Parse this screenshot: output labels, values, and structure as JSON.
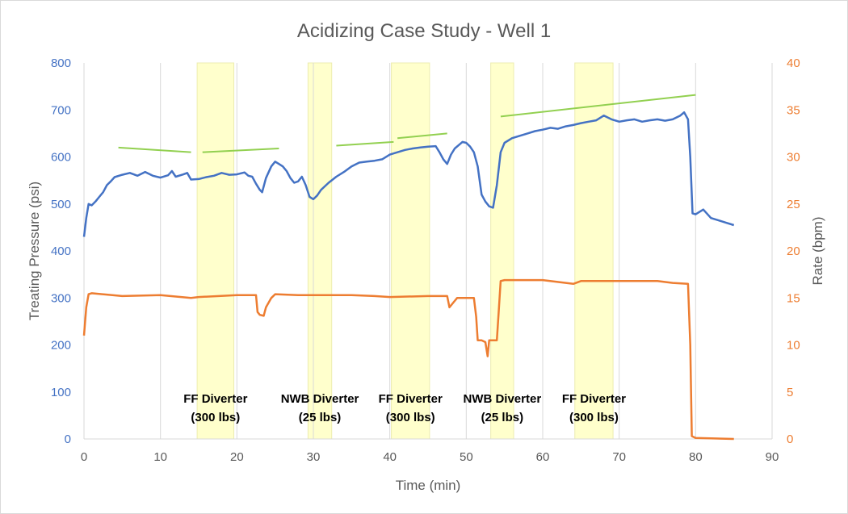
{
  "chart_data": {
    "type": "line",
    "title": "Acidizing Case Study - Well 1",
    "xlabel": "Time (min)",
    "ylabel_left": "Treating Pressure (psi)",
    "ylabel_right": "Rate (bpm)",
    "xlim": [
      0,
      90
    ],
    "ylim_left": [
      0,
      800
    ],
    "ylim_right": [
      0,
      40
    ],
    "x_ticks": [
      0,
      10,
      20,
      30,
      40,
      50,
      60,
      70,
      80,
      90
    ],
    "y_left_ticks": [
      0,
      100,
      200,
      300,
      400,
      500,
      600,
      700,
      800
    ],
    "y_right_ticks": [
      0,
      5,
      10,
      15,
      20,
      25,
      30,
      35,
      40
    ],
    "grid": "vertical",
    "colors": {
      "pressure": "#4472c4",
      "rate": "#ed7d31",
      "trend": "#92d050",
      "band": "#ffffcc",
      "grid": "#d9d9d9"
    },
    "series": [
      {
        "key": "pressure",
        "axis": "left",
        "points": [
          [
            0,
            430
          ],
          [
            0.3,
            470
          ],
          [
            0.6,
            500
          ],
          [
            1,
            497
          ],
          [
            1.5,
            505
          ],
          [
            2,
            515
          ],
          [
            2.5,
            525
          ],
          [
            3,
            540
          ],
          [
            3.5,
            548
          ],
          [
            4,
            557
          ],
          [
            5,
            562
          ],
          [
            6,
            566
          ],
          [
            7,
            560
          ],
          [
            8,
            568
          ],
          [
            9,
            560
          ],
          [
            10,
            556
          ],
          [
            11,
            561
          ],
          [
            11.5,
            570
          ],
          [
            12,
            558
          ],
          [
            13,
            563
          ],
          [
            13.5,
            566
          ],
          [
            14,
            552
          ],
          [
            15,
            553
          ],
          [
            16,
            557
          ],
          [
            17,
            560
          ],
          [
            18,
            566
          ],
          [
            19,
            562
          ],
          [
            20,
            563
          ],
          [
            21,
            567
          ],
          [
            21.5,
            560
          ],
          [
            22,
            558
          ],
          [
            22.5,
            543
          ],
          [
            23,
            530
          ],
          [
            23.3,
            525
          ],
          [
            23.8,
            555
          ],
          [
            24.5,
            580
          ],
          [
            25,
            590
          ],
          [
            25.5,
            585
          ],
          [
            26,
            580
          ],
          [
            26.5,
            570
          ],
          [
            27,
            555
          ],
          [
            27.5,
            545
          ],
          [
            28,
            548
          ],
          [
            28.5,
            558
          ],
          [
            29,
            540
          ],
          [
            29.5,
            515
          ],
          [
            30,
            510
          ],
          [
            30.5,
            518
          ],
          [
            31,
            530
          ],
          [
            32,
            545
          ],
          [
            33,
            558
          ],
          [
            34,
            568
          ],
          [
            35,
            580
          ],
          [
            36,
            588
          ],
          [
            37,
            590
          ],
          [
            38,
            592
          ],
          [
            39,
            595
          ],
          [
            40,
            605
          ],
          [
            41,
            610
          ],
          [
            42,
            615
          ],
          [
            43,
            618
          ],
          [
            44,
            620
          ],
          [
            45,
            622
          ],
          [
            46,
            623
          ],
          [
            46.5,
            610
          ],
          [
            47,
            595
          ],
          [
            47.5,
            585
          ],
          [
            48,
            605
          ],
          [
            48.5,
            618
          ],
          [
            49,
            625
          ],
          [
            49.5,
            632
          ],
          [
            50,
            630
          ],
          [
            50.5,
            622
          ],
          [
            51,
            610
          ],
          [
            51.5,
            580
          ],
          [
            52,
            520
          ],
          [
            52.5,
            505
          ],
          [
            53,
            495
          ],
          [
            53.5,
            492
          ],
          [
            54,
            540
          ],
          [
            54.5,
            610
          ],
          [
            55,
            630
          ],
          [
            56,
            640
          ],
          [
            57,
            645
          ],
          [
            58,
            650
          ],
          [
            59,
            655
          ],
          [
            60,
            658
          ],
          [
            61,
            662
          ],
          [
            62,
            660
          ],
          [
            63,
            665
          ],
          [
            64,
            668
          ],
          [
            65,
            672
          ],
          [
            66,
            675
          ],
          [
            67,
            678
          ],
          [
            68,
            688
          ],
          [
            69,
            680
          ],
          [
            70,
            675
          ],
          [
            71,
            678
          ],
          [
            72,
            680
          ],
          [
            73,
            675
          ],
          [
            74,
            678
          ],
          [
            75,
            680
          ],
          [
            76,
            677
          ],
          [
            77,
            680
          ],
          [
            78,
            688
          ],
          [
            78.5,
            695
          ],
          [
            79,
            680
          ],
          [
            79.3,
            600
          ],
          [
            79.6,
            480
          ],
          [
            80,
            478
          ],
          [
            81,
            488
          ],
          [
            82,
            470
          ],
          [
            83,
            465
          ],
          [
            84,
            460
          ],
          [
            85,
            455
          ]
        ]
      },
      {
        "key": "rate",
        "axis": "right",
        "points": [
          [
            0,
            11
          ],
          [
            0.3,
            14
          ],
          [
            0.6,
            15.4
          ],
          [
            1,
            15.5
          ],
          [
            5,
            15.2
          ],
          [
            10,
            15.3
          ],
          [
            14,
            15
          ],
          [
            15,
            15.1
          ],
          [
            20,
            15.3
          ],
          [
            22.5,
            15.3
          ],
          [
            22.7,
            13.5
          ],
          [
            23,
            13.2
          ],
          [
            23.5,
            13.1
          ],
          [
            23.8,
            14
          ],
          [
            24.5,
            15
          ],
          [
            25,
            15.4
          ],
          [
            28,
            15.3
          ],
          [
            30,
            15.3
          ],
          [
            35,
            15.3
          ],
          [
            38,
            15.2
          ],
          [
            40,
            15.1
          ],
          [
            45,
            15.2
          ],
          [
            47.5,
            15.2
          ],
          [
            47.8,
            14
          ],
          [
            48.3,
            14.5
          ],
          [
            48.8,
            15
          ],
          [
            51,
            15
          ],
          [
            51.3,
            13
          ],
          [
            51.5,
            10.5
          ],
          [
            52,
            10.5
          ],
          [
            52.5,
            10.3
          ],
          [
            52.8,
            8.8
          ],
          [
            53,
            10.5
          ],
          [
            54,
            10.5
          ],
          [
            54.2,
            13
          ],
          [
            54.5,
            16.8
          ],
          [
            55,
            16.9
          ],
          [
            60,
            16.9
          ],
          [
            64,
            16.5
          ],
          [
            65,
            16.8
          ],
          [
            70,
            16.8
          ],
          [
            75,
            16.8
          ],
          [
            77,
            16.6
          ],
          [
            79,
            16.5
          ],
          [
            79.3,
            10
          ],
          [
            79.5,
            0.3
          ],
          [
            80,
            0.1
          ],
          [
            85,
            0
          ]
        ]
      }
    ],
    "trend_lines": [
      [
        [
          4.5,
          31
        ],
        [
          14,
          30.5
        ]
      ],
      [
        [
          15.5,
          30.5
        ],
        [
          25.5,
          30.9
        ]
      ],
      [
        [
          33,
          31.2
        ],
        [
          40.5,
          31.6
        ]
      ],
      [
        [
          41,
          32
        ],
        [
          47.5,
          32.5
        ]
      ],
      [
        [
          54.5,
          34.3
        ],
        [
          80,
          36.6
        ]
      ]
    ],
    "diverter_stages": [
      {
        "start": 14.8,
        "end": 19.6,
        "label_line1": "FF Diverter",
        "label_line2": "(300 lbs)"
      },
      {
        "start": 29.3,
        "end": 32.4,
        "label_line1": "NWB Diverter",
        "label_line2": "(25 lbs)"
      },
      {
        "start": 40.2,
        "end": 45.2,
        "label_line1": "FF Diverter",
        "label_line2": "(300 lbs)"
      },
      {
        "start": 53.2,
        "end": 56.2,
        "label_line1": "NWB Diverter",
        "label_line2": "(25 lbs)"
      },
      {
        "start": 64.2,
        "end": 69.2,
        "label_line1": "FF Diverter",
        "label_line2": "(300 lbs)"
      }
    ]
  }
}
